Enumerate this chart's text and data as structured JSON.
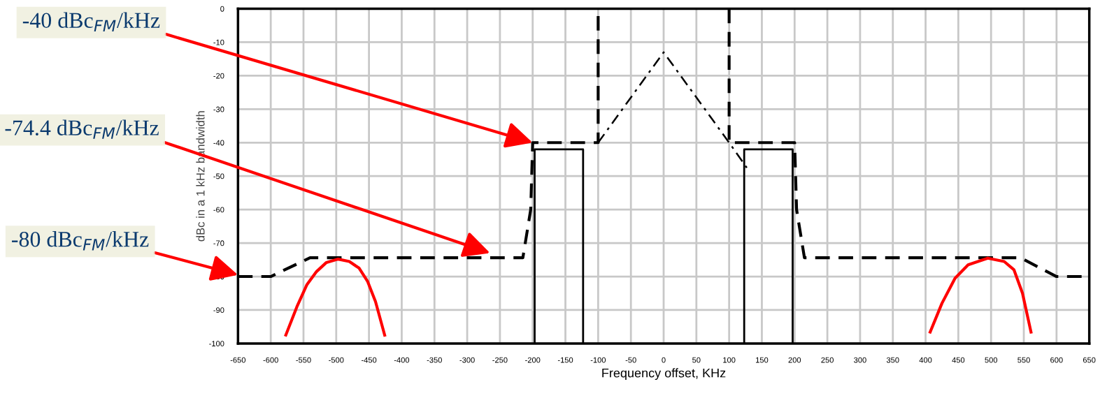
{
  "chart_data": {
    "type": "line",
    "xlabel": "Frequency offset, KHz",
    "ylabel": "dBc in a 1 kHz bandwidth",
    "xlim": [
      -650,
      650
    ],
    "ylim": [
      -100,
      0
    ],
    "xticks": [
      -650,
      -600,
      -550,
      -500,
      -450,
      -400,
      -350,
      -300,
      -250,
      -200,
      -150,
      -100,
      -50,
      0,
      50,
      100,
      150,
      200,
      250,
      300,
      350,
      400,
      450,
      500,
      550,
      600,
      650
    ],
    "yticks": [
      -100,
      -90,
      -80,
      -70,
      -60,
      -50,
      -40,
      -30,
      -20,
      -10,
      0
    ],
    "grid": true,
    "marker": "none",
    "series": [
      {
        "color": "#000000",
        "line_style": "dashed",
        "x": [
          -650,
          -600,
          -540,
          -215,
          -203,
          -200,
          -100,
          -100,
          0,
          100,
          100,
          200,
          200,
          203,
          215,
          545,
          600,
          650
        ],
        "values": [
          -80,
          -80,
          -74.4,
          -74.4,
          -60,
          -40,
          -40,
          0,
          null,
          0,
          -40,
          -40,
          -40,
          -60,
          -74.4,
          -74.4,
          -80,
          -80
        ]
      },
      {
        "color": "#000000",
        "line_style": "dashdot",
        "x": [
          -100,
          0,
          100,
          127
        ],
        "values": [
          -40,
          -13,
          -40,
          -47.5
        ]
      },
      {
        "color": "#000000",
        "line_style": "solid",
        "x": [
          -197,
          -197,
          -123,
          -123,
          -10,
          123,
          123,
          197,
          197
        ],
        "values": [
          -100,
          -42,
          -42,
          -100,
          null,
          -100,
          -42,
          -42,
          -100
        ]
      },
      {
        "color": "#ff0000",
        "line_style": "solid",
        "x": [
          -577,
          -560,
          -545,
          -530,
          -515,
          -497,
          -480,
          -465,
          -452,
          -440,
          -426
        ],
        "values": [
          -97.5,
          -89,
          -82.5,
          -78.5,
          -75.8,
          -74.8,
          -75.5,
          -77.5,
          -81.5,
          -87.5,
          -97.5
        ]
      },
      {
        "color": "#ff0000",
        "line_style": "solid",
        "x": [
          407,
          425,
          445,
          465,
          495,
          520,
          535,
          548,
          561
        ],
        "values": [
          -96.6,
          -88,
          -80.5,
          -76.5,
          -74.5,
          -75.5,
          -78,
          -85,
          -96.6
        ]
      }
    ],
    "annotations": [
      {
        "text": "-40 dBc$_{FM}$/kHz",
        "x": -200,
        "y": -40
      },
      {
        "text": "-74.4 dBc$_{FM}$/kHz",
        "x": -265,
        "y": -73
      },
      {
        "text": "-80 dBc$_{FM}$/kHz",
        "x": -650,
        "y": -79.5
      }
    ]
  }
}
